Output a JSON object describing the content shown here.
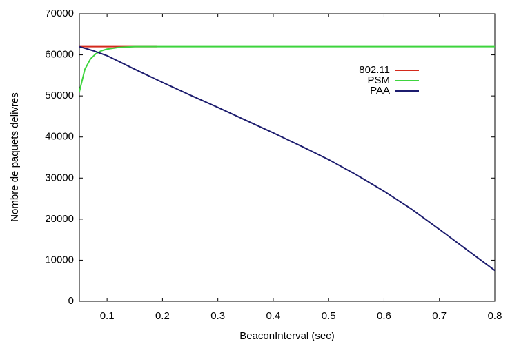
{
  "chart_data": {
    "type": "line",
    "x_label": "BeaconInterval (sec)",
    "y_label": "Nombre de paquets delivres",
    "xlim": [
      0.05,
      0.8
    ],
    "ylim": [
      0,
      70000
    ],
    "xticks": [
      0.1,
      0.2,
      0.3,
      0.4,
      0.5,
      0.6,
      0.7,
      0.8
    ],
    "yticks": [
      0,
      10000,
      20000,
      30000,
      40000,
      50000,
      60000,
      70000
    ],
    "legend": "upper right",
    "series": [
      {
        "name": "802.11",
        "color": "#d42a1c",
        "x": [
          0.05,
          0.1,
          0.15,
          0.19
        ],
        "values": [
          62000,
          62000,
          62000,
          62000
        ]
      },
      {
        "name": "PSM",
        "color": "#3ed43e",
        "x": [
          0.05,
          0.06,
          0.07,
          0.08,
          0.09,
          0.1,
          0.12,
          0.15,
          0.2,
          0.3,
          0.4,
          0.5,
          0.6,
          0.7,
          0.8
        ],
        "values": [
          51000,
          56500,
          59000,
          60300,
          61000,
          61400,
          61800,
          62000,
          62000,
          62000,
          62000,
          62000,
          62000,
          62000,
          62000
        ]
      },
      {
        "name": "PAA",
        "color": "#1c1c6e",
        "x": [
          0.05,
          0.075,
          0.1,
          0.15,
          0.2,
          0.25,
          0.3,
          0.35,
          0.4,
          0.45,
          0.5,
          0.55,
          0.6,
          0.65,
          0.7,
          0.75,
          0.8
        ],
        "values": [
          62000,
          61000,
          59800,
          56500,
          53300,
          50200,
          47200,
          44100,
          41000,
          37800,
          34500,
          30800,
          26800,
          22400,
          17500,
          12500,
          7500
        ]
      }
    ]
  }
}
